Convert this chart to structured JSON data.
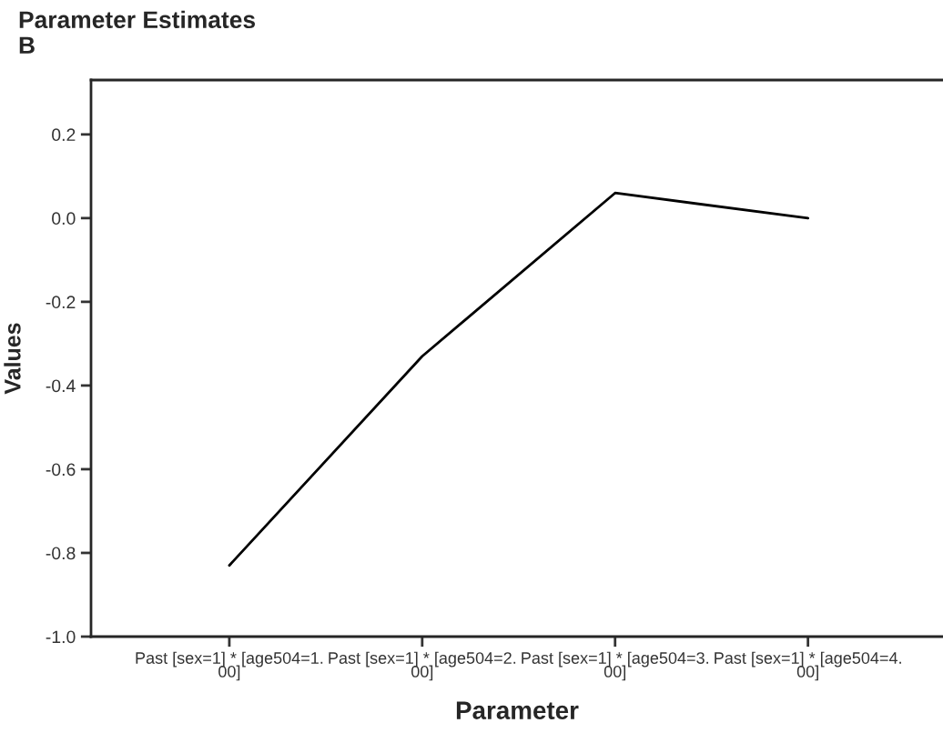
{
  "chart_data": {
    "type": "line",
    "title": "Parameter Estimates",
    "subtitle": "B",
    "xlabel": "Parameter",
    "ylabel": "Values",
    "categories": [
      "Past [sex=1] * [age504=1.\n00]",
      "Past [sex=1] * [age504=2.\n00]",
      "Past [sex=1] * [age504=3.\n00]",
      "Past [sex=1] * [age504=4.\n00]"
    ],
    "series": [
      {
        "color": "#000000",
        "values": [
          -0.83,
          -0.33,
          0.06,
          0.0
        ]
      }
    ],
    "ylim": [
      -1.0,
      0.33
    ],
    "yticks": [
      {
        "value": -1.0,
        "label": "-1.0"
      },
      {
        "value": -0.8,
        "label": "-0.8"
      },
      {
        "value": -0.6,
        "label": "-0.6"
      },
      {
        "value": -0.4,
        "label": "-0.4"
      },
      {
        "value": -0.2,
        "label": "-0.2"
      },
      {
        "value": 0.0,
        "label": "0.0"
      },
      {
        "value": 0.2,
        "label": "0.2"
      }
    ],
    "grid": false,
    "legend": false,
    "marker": "none",
    "line_style": "solid"
  }
}
